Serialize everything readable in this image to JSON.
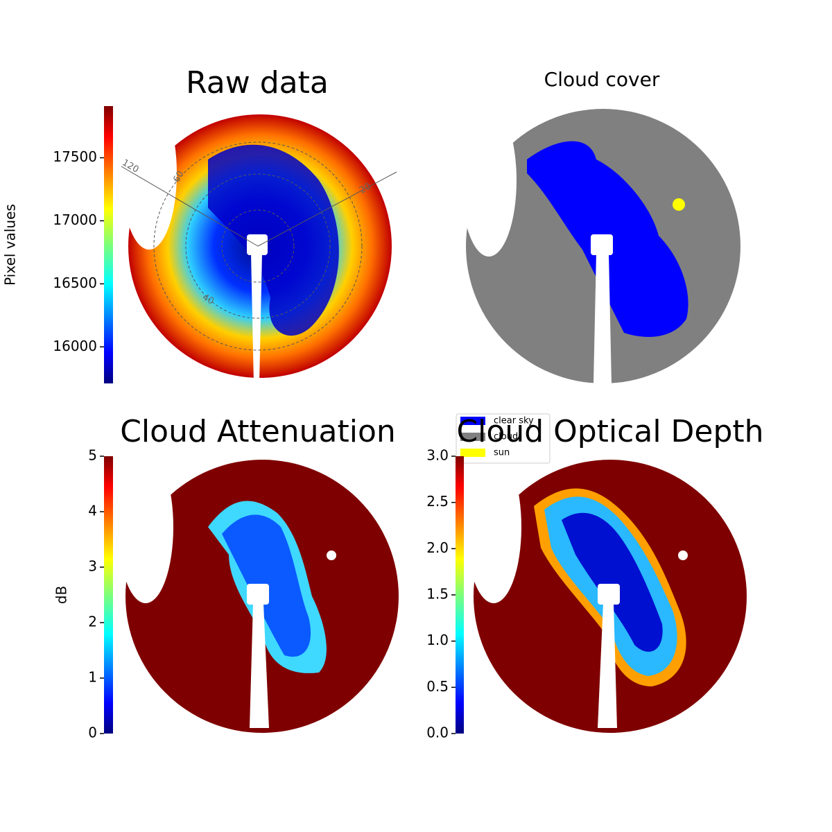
{
  "chart_data": [
    {
      "type": "image",
      "title": "Raw data",
      "ylabel": "Pixel values",
      "ylim": [
        15710,
        17910
      ],
      "yticks": [
        16000,
        16500,
        17000,
        17500
      ],
      "colormap": "jet",
      "annotations": [
        "120",
        "60",
        "20",
        "40"
      ]
    },
    {
      "type": "classification",
      "title": "Cloud cover",
      "series": [
        {
          "name": "clear sky",
          "color": "#0000ff"
        },
        {
          "name": "cloud",
          "color": "#808080"
        },
        {
          "name": "sun",
          "color": "#ffff00"
        }
      ]
    },
    {
      "type": "image",
      "title": "Cloud Attenuation",
      "ylabel": "dB",
      "ylim": [
        0,
        5
      ],
      "yticks": [
        0,
        1,
        2,
        3,
        4,
        5
      ],
      "colormap": "jet"
    },
    {
      "type": "image",
      "title": "Cloud Optical Depth",
      "ylim": [
        0,
        3
      ],
      "yticks": [
        {
          "value": 0,
          "label": "0.0"
        },
        0.5,
        {
          "value": 1,
          "label": "1.0"
        },
        1.5,
        {
          "value": 2,
          "label": "2.0"
        },
        2.5,
        {
          "value": 3,
          "label": "3.0"
        }
      ],
      "colormap": "jet"
    }
  ]
}
